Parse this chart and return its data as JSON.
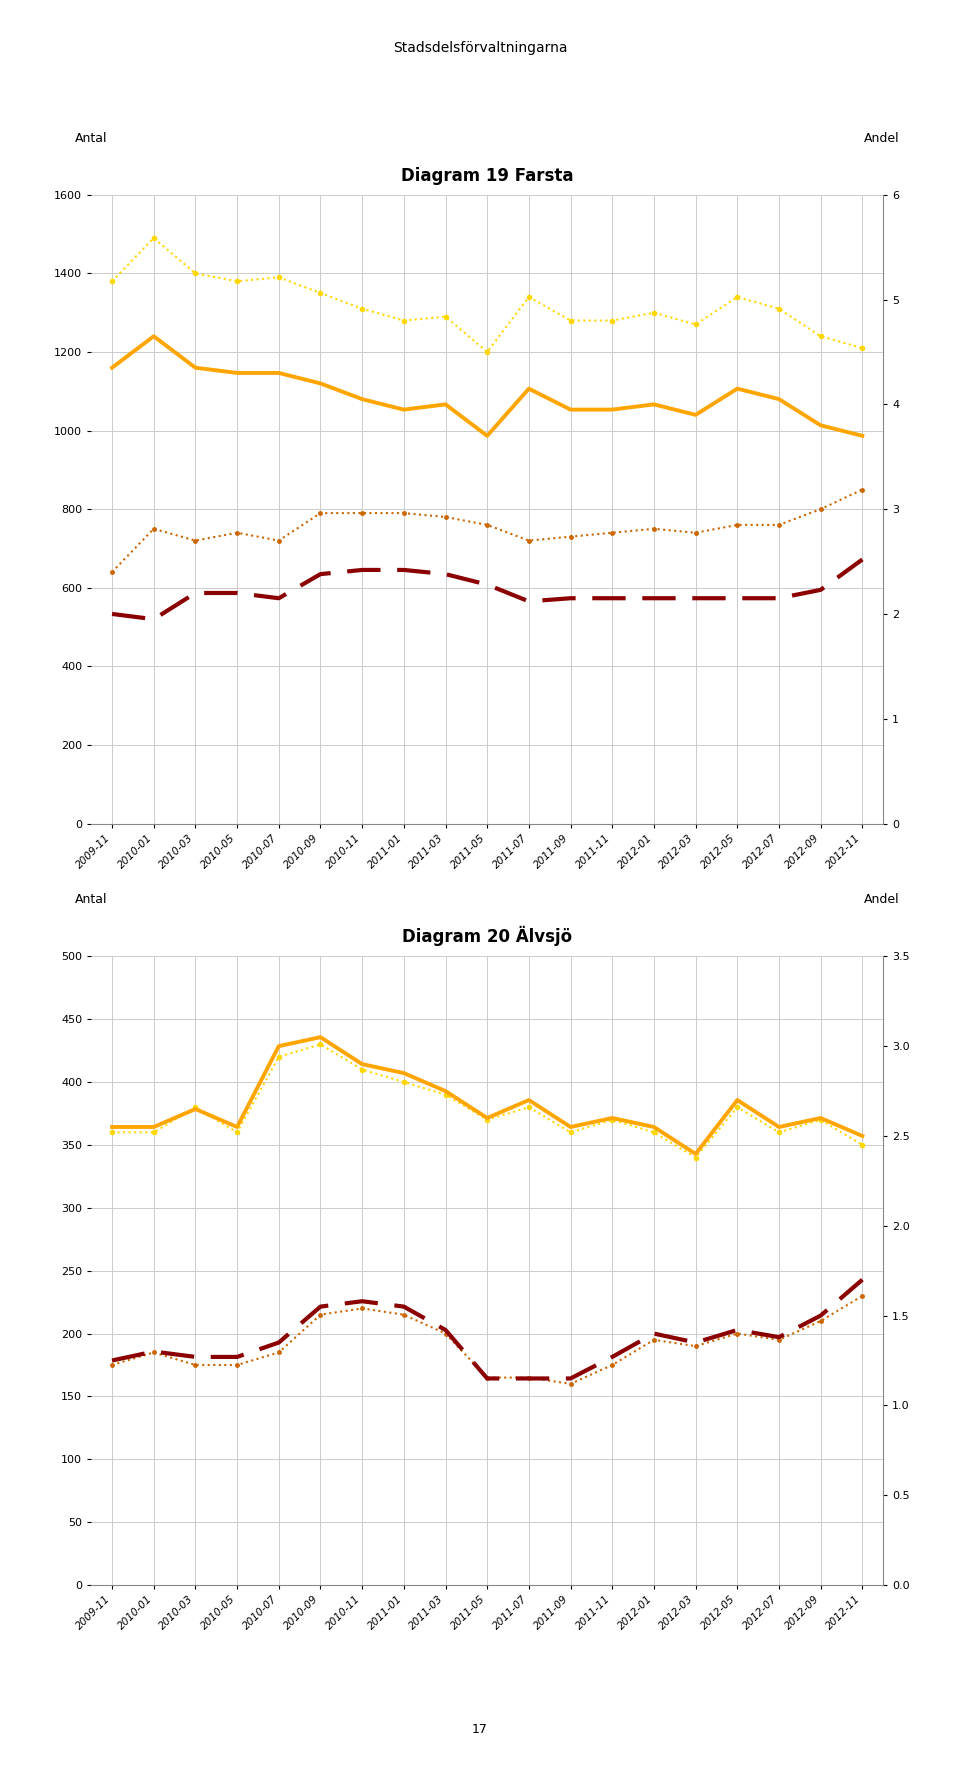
{
  "page_title": "Stadsdelsförvaltningarna",
  "page_number": "17",
  "x_labels": [
    "2009-11",
    "2010-01",
    "2010-03",
    "2010-05",
    "2010-07",
    "2010-09",
    "2010-11",
    "2011-01",
    "2011-03",
    "2011-05",
    "2011-07",
    "2011-09",
    "2011-11",
    "2012-01",
    "2012-03",
    "2012-05",
    "2012-07",
    "2012-09",
    "2012-11"
  ],
  "chart1": {
    "title": "Diagram 19 Farsta",
    "ylabel_left": "Antal",
    "ylabel_right": "Andel",
    "ylim_left": [
      0,
      1600
    ],
    "ylim_right": [
      0,
      6
    ],
    "yticks_left": [
      0,
      200,
      400,
      600,
      800,
      1000,
      1200,
      1400,
      1600
    ],
    "yticks_right": [
      0,
      1,
      2,
      3,
      4,
      5,
      6
    ],
    "series": {
      "antal_arbetslosa": [
        1380,
        1490,
        1400,
        1380,
        1390,
        1350,
        1310,
        1280,
        1290,
        1200,
        1340,
        1280,
        1280,
        1300,
        1270,
        1340,
        1310,
        1240,
        1210
      ],
      "andel_arbetslosa": [
        4.35,
        4.65,
        4.35,
        4.3,
        4.3,
        4.2,
        4.05,
        3.95,
        4.0,
        3.7,
        4.15,
        3.95,
        3.95,
        4.0,
        3.9,
        4.15,
        4.05,
        3.8,
        3.7
      ],
      "antal_program": [
        640,
        750,
        720,
        740,
        720,
        790,
        790,
        790,
        780,
        760,
        720,
        730,
        740,
        750,
        740,
        760,
        760,
        800,
        850
      ],
      "andel_prog": [
        2.0,
        1.95,
        2.2,
        2.2,
        2.15,
        2.38,
        2.42,
        2.42,
        2.38,
        2.28,
        2.12,
        2.15,
        2.15,
        2.15,
        2.15,
        2.15,
        2.15,
        2.23,
        2.52
      ]
    }
  },
  "chart2": {
    "title": "Diagram 20 Älvsjö",
    "ylabel_left": "Antal",
    "ylabel_right": "Andel",
    "ylim_left": [
      0,
      500
    ],
    "ylim_right": [
      0,
      3.5
    ],
    "yticks_left": [
      0,
      50,
      100,
      150,
      200,
      250,
      300,
      350,
      400,
      450,
      500
    ],
    "yticks_right": [
      0,
      0.5,
      1.0,
      1.5,
      2.0,
      2.5,
      3.0,
      3.5
    ],
    "series": {
      "antal_arbetslosa": [
        360,
        360,
        380,
        360,
        420,
        430,
        410,
        400,
        390,
        370,
        380,
        360,
        370,
        360,
        340,
        380,
        360,
        370,
        350
      ],
      "andel_arbetslosa": [
        2.55,
        2.55,
        2.65,
        2.55,
        3.0,
        3.05,
        2.9,
        2.85,
        2.75,
        2.6,
        2.7,
        2.55,
        2.6,
        2.55,
        2.4,
        2.7,
        2.55,
        2.6,
        2.5
      ],
      "antal_program": [
        175,
        185,
        175,
        175,
        185,
        215,
        220,
        215,
        200,
        165,
        165,
        160,
        175,
        195,
        190,
        200,
        195,
        210,
        230
      ],
      "andel_prog": [
        1.25,
        1.3,
        1.27,
        1.27,
        1.35,
        1.55,
        1.58,
        1.55,
        1.42,
        1.15,
        1.15,
        1.15,
        1.27,
        1.4,
        1.35,
        1.42,
        1.38,
        1.5,
        1.7
      ]
    }
  }
}
